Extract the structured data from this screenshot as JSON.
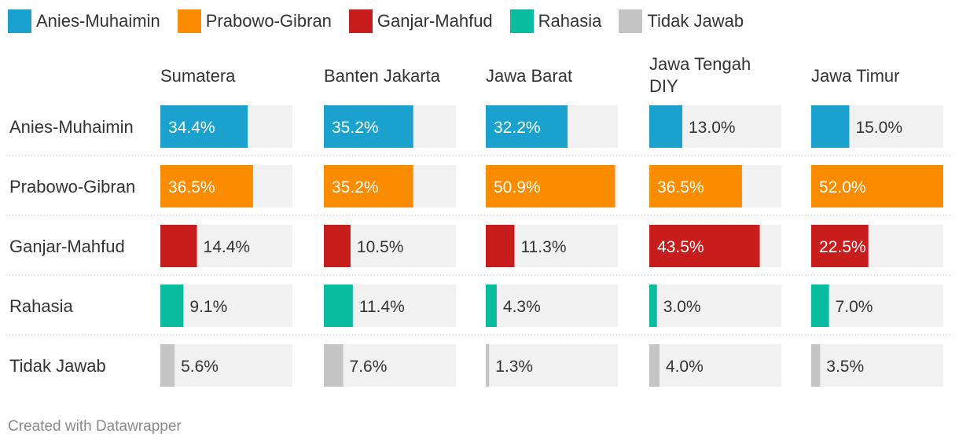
{
  "chart_data": {
    "type": "bar",
    "subtype": "small-multiples-horizontal-bar",
    "legend": [
      {
        "name": "Anies-Muhaimin",
        "color": "#1ba1ce"
      },
      {
        "name": "Prabowo-Gibran",
        "color": "#fb8c00"
      },
      {
        "name": "Ganjar-Mahfud",
        "color": "#c71e1d"
      },
      {
        "name": "Rahasia",
        "color": "#09bb9f"
      },
      {
        "name": "Tidak Jawab",
        "color": "#c4c4c4"
      }
    ],
    "columns": [
      {
        "label_lines": [
          "Sumatera"
        ],
        "values": [
          34.4,
          36.5,
          14.4,
          9.1,
          5.6
        ],
        "labels": [
          "34.4%",
          "36.5%",
          "14.4%",
          "9.1%",
          "5.6%"
        ]
      },
      {
        "label_lines": [
          "Banten Jakarta"
        ],
        "values": [
          35.2,
          35.2,
          10.5,
          11.4,
          7.6
        ],
        "labels": [
          "35.2%",
          "35.2%",
          "10.5%",
          "11.4%",
          "7.6%"
        ]
      },
      {
        "label_lines": [
          "Jawa Barat"
        ],
        "values": [
          32.2,
          50.9,
          11.3,
          4.3,
          1.3
        ],
        "labels": [
          "32.2%",
          "50.9%",
          "11.3%",
          "4.3%",
          "1.3%"
        ]
      },
      {
        "label_lines": [
          "Jawa Tengah",
          "DIY"
        ],
        "values": [
          13.0,
          36.5,
          43.5,
          3.0,
          4.0
        ],
        "labels": [
          "13.0%",
          "36.5%",
          "43.5%",
          "3.0%",
          "4.0%"
        ]
      },
      {
        "label_lines": [
          "Jawa Timur"
        ],
        "values": [
          15.0,
          52.0,
          22.5,
          7.0,
          3.5
        ],
        "labels": [
          "15.0%",
          "52.0%",
          "22.5%",
          "7.0%",
          "3.5%"
        ]
      }
    ],
    "rows": [
      "Anies-Muhaimin",
      "Prabowo-Gibran",
      "Ganjar-Mahfud",
      "Rahasia",
      "Tidak Jawab"
    ],
    "xlim": [
      0,
      52
    ],
    "background_color": "#f1f1f1"
  },
  "footer": "Created with Datawrapper"
}
